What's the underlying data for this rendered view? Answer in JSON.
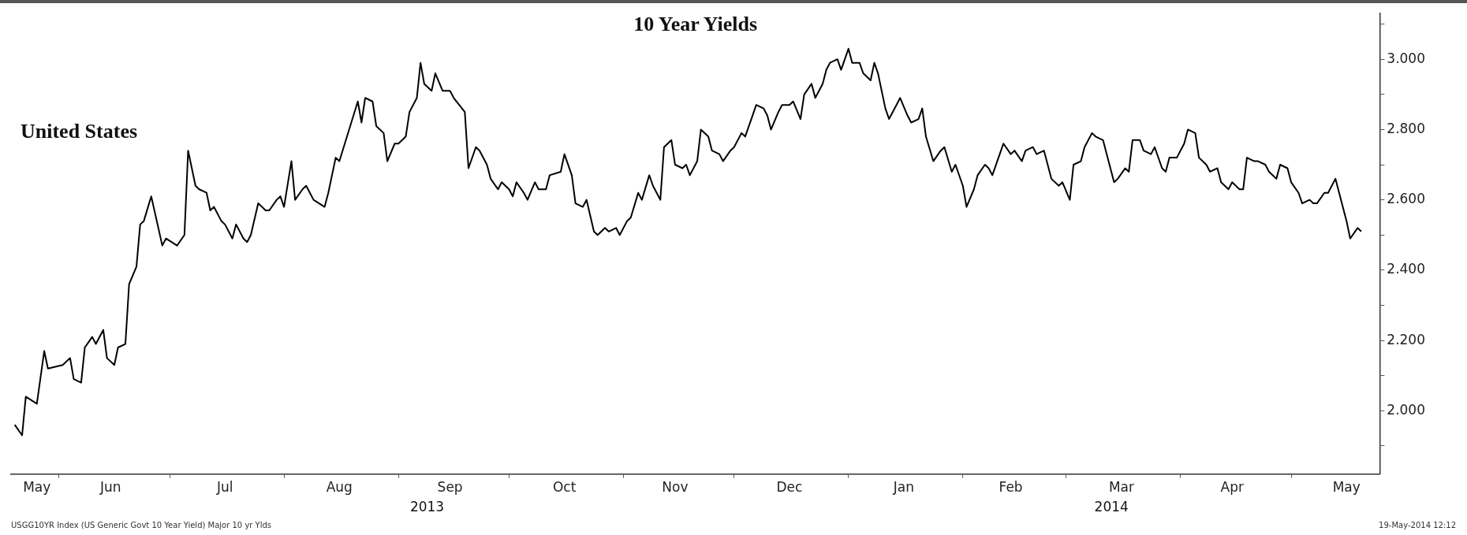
{
  "chart_data": {
    "type": "line",
    "title": "10 Year Yields",
    "subtitle": "United States",
    "xlim": [
      "2013-05-19",
      "2014-05-25"
    ],
    "ylim": [
      1.82,
      3.13
    ],
    "xticks": [
      {
        "value": "2013-05-26",
        "label": "May"
      },
      {
        "value": "2013-06-01",
        "label": null
      },
      {
        "value": "2013-06-15",
        "label": "Jun"
      },
      {
        "value": "2013-07-01",
        "label": null
      },
      {
        "value": "2013-07-16",
        "label": "Jul"
      },
      {
        "value": "2013-08-01",
        "label": null
      },
      {
        "value": "2013-08-16",
        "label": "Aug"
      },
      {
        "value": "2013-09-01",
        "label": null
      },
      {
        "value": "2013-09-15",
        "label": "Sep"
      },
      {
        "value": "2013-10-01",
        "label": null
      },
      {
        "value": "2013-10-16",
        "label": "Oct"
      },
      {
        "value": "2013-11-01",
        "label": null
      },
      {
        "value": "2013-11-15",
        "label": "Nov"
      },
      {
        "value": "2013-12-01",
        "label": null
      },
      {
        "value": "2013-12-16",
        "label": "Dec"
      },
      {
        "value": "2014-01-01",
        "label": null
      },
      {
        "value": "2014-01-16",
        "label": "Jan"
      },
      {
        "value": "2014-02-01",
        "label": null
      },
      {
        "value": "2014-02-14",
        "label": "Feb"
      },
      {
        "value": "2014-03-01",
        "label": null
      },
      {
        "value": "2014-03-16",
        "label": "Mar"
      },
      {
        "value": "2014-04-01",
        "label": null
      },
      {
        "value": "2014-04-15",
        "label": "Apr"
      },
      {
        "value": "2014-05-01",
        "label": null
      },
      {
        "value": "2014-05-16",
        "label": "May"
      }
    ],
    "yticks": [
      {
        "value": 1.9,
        "label": null
      },
      {
        "value": 2,
        "label": "2.000"
      },
      {
        "value": 2.1,
        "label": null
      },
      {
        "value": 2.2,
        "label": "2.200"
      },
      {
        "value": 2.3,
        "label": null
      },
      {
        "value": 2.4,
        "label": "2.400"
      },
      {
        "value": 2.5,
        "label": null
      },
      {
        "value": 2.6,
        "label": "2.600"
      },
      {
        "value": 2.7,
        "label": null
      },
      {
        "value": 2.8,
        "label": "2.800"
      },
      {
        "value": 2.9,
        "label": null
      },
      {
        "value": 3,
        "label": "3.000"
      },
      {
        "value": 3.1,
        "label": null
      }
    ],
    "annotations": [
      "2013",
      "2014",
      "USGG10YR Index (US Generic Govt 10 Year Yield) Major 10 yr Ylds",
      "19-May-2014 12:12"
    ],
    "x": [
      "2013-05-20",
      "2013-05-22",
      "2013-05-23",
      "2013-05-26",
      "2013-05-28",
      "2013-05-29",
      "2013-06-02",
      "2013-06-04",
      "2013-06-05",
      "2013-06-07",
      "2013-06-08",
      "2013-06-10",
      "2013-06-11",
      "2013-06-13",
      "2013-06-14",
      "2013-06-16",
      "2013-06-17",
      "2013-06-19",
      "2013-06-20",
      "2013-06-22",
      "2013-06-23",
      "2013-06-24",
      "2013-06-26",
      "2013-06-29",
      "2013-06-30",
      "2013-07-03",
      "2013-07-05",
      "2013-07-06",
      "2013-07-08",
      "2013-07-09",
      "2013-07-11",
      "2013-07-12",
      "2013-07-13",
      "2013-07-15",
      "2013-07-16",
      "2013-07-18",
      "2013-07-19",
      "2013-07-21",
      "2013-07-22",
      "2013-07-23",
      "2013-07-25",
      "2013-07-27",
      "2013-07-28",
      "2013-07-30",
      "2013-07-31",
      "2013-08-01",
      "2013-08-03",
      "2013-08-04",
      "2013-08-06",
      "2013-08-07",
      "2013-08-09",
      "2013-08-12",
      "2013-08-13",
      "2013-08-15",
      "2013-08-16",
      "2013-08-21",
      "2013-08-22",
      "2013-08-23",
      "2013-08-25",
      "2013-08-26",
      "2013-08-28",
      "2013-08-29",
      "2013-08-31",
      "2013-09-01",
      "2013-09-03",
      "2013-09-04",
      "2013-09-06",
      "2013-09-07",
      "2013-09-08",
      "2013-09-10",
      "2013-09-11",
      "2013-09-13",
      "2013-09-15",
      "2013-09-16",
      "2013-09-19",
      "2013-09-20",
      "2013-09-22",
      "2013-09-23",
      "2013-09-25",
      "2013-09-26",
      "2013-09-28",
      "2013-09-29",
      "2013-10-01",
      "2013-10-02",
      "2013-10-03",
      "2013-10-05",
      "2013-10-06",
      "2013-10-08",
      "2013-10-09",
      "2013-10-11",
      "2013-10-12",
      "2013-10-15",
      "2013-10-16",
      "2013-10-18",
      "2013-10-19",
      "2013-10-21",
      "2013-10-22",
      "2013-10-24",
      "2013-10-25",
      "2013-10-27",
      "2013-10-28",
      "2013-10-30",
      "2013-10-31",
      "2013-11-02",
      "2013-11-03",
      "2013-11-05",
      "2013-11-06",
      "2013-11-08",
      "2013-11-09",
      "2013-11-11",
      "2013-11-12",
      "2013-11-14",
      "2013-11-15",
      "2013-11-17",
      "2013-11-18",
      "2013-11-19",
      "2013-11-21",
      "2013-11-22",
      "2013-11-24",
      "2013-11-25",
      "2013-11-27",
      "2013-11-28",
      "2013-11-30",
      "2013-12-01",
      "2013-12-03",
      "2013-12-04",
      "2013-12-06",
      "2013-12-07",
      "2013-12-09",
      "2013-12-10",
      "2013-12-11",
      "2013-12-13",
      "2013-12-14",
      "2013-12-16",
      "2013-12-17",
      "2013-12-19",
      "2013-12-20",
      "2013-12-22",
      "2013-12-23",
      "2013-12-25",
      "2013-12-26",
      "2013-12-27",
      "2013-12-29",
      "2013-12-30",
      "2014-01-01",
      "2014-01-02",
      "2014-01-04",
      "2014-01-05",
      "2014-01-07",
      "2014-01-08",
      "2014-01-09",
      "2014-01-11",
      "2014-01-12",
      "2014-01-14",
      "2014-01-15",
      "2014-01-17",
      "2014-01-18",
      "2014-01-20",
      "2014-01-21",
      "2014-01-22",
      "2014-01-24",
      "2014-01-26",
      "2014-01-27",
      "2014-01-29",
      "2014-01-30",
      "2014-02-01",
      "2014-02-02",
      "2014-02-04",
      "2014-02-05",
      "2014-02-07",
      "2014-02-08",
      "2014-02-09",
      "2014-02-11",
      "2014-02-12",
      "2014-02-14",
      "2014-02-15",
      "2014-02-17",
      "2014-02-18",
      "2014-02-20",
      "2014-02-21",
      "2014-02-23",
      "2014-02-24",
      "2014-02-25",
      "2014-02-27",
      "2014-02-28",
      "2014-03-02",
      "2014-03-03",
      "2014-03-05",
      "2014-03-06",
      "2014-03-08",
      "2014-03-09",
      "2014-03-11",
      "2014-03-12",
      "2014-03-14",
      "2014-03-15",
      "2014-03-17",
      "2014-03-18",
      "2014-03-19",
      "2014-03-21",
      "2014-03-22",
      "2014-03-24",
      "2014-03-25",
      "2014-03-27",
      "2014-03-28",
      "2014-03-29",
      "2014-03-31",
      "2014-04-02",
      "2014-04-03",
      "2014-04-05",
      "2014-04-06",
      "2014-04-08",
      "2014-04-09",
      "2014-04-11",
      "2014-04-12",
      "2014-04-14",
      "2014-04-15",
      "2014-04-17",
      "2014-04-18",
      "2014-04-19",
      "2014-04-21",
      "2014-04-22",
      "2014-04-24",
      "2014-04-25",
      "2014-04-27",
      "2014-04-28",
      "2014-04-30",
      "2014-05-01",
      "2014-05-03",
      "2014-05-04",
      "2014-05-06",
      "2014-05-07",
      "2014-05-08",
      "2014-05-10",
      "2014-05-11",
      "2014-05-13",
      "2014-05-14",
      "2014-05-16",
      "2014-05-17",
      "2014-05-19",
      "2014-05-20"
    ],
    "series": [
      {
        "color": "#000000",
        "values": [
          1.96,
          1.93,
          2.04,
          2.02,
          2.17,
          2.12,
          2.13,
          2.15,
          2.09,
          2.08,
          2.18,
          2.21,
          2.19,
          2.23,
          2.15,
          2.13,
          2.18,
          2.19,
          2.36,
          2.41,
          2.53,
          2.54,
          2.61,
          2.47,
          2.49,
          2.47,
          2.5,
          2.74,
          2.64,
          2.63,
          2.62,
          2.57,
          2.58,
          2.54,
          2.53,
          2.49,
          2.53,
          2.49,
          2.48,
          2.5,
          2.59,
          2.57,
          2.57,
          2.6,
          2.61,
          2.58,
          2.71,
          2.6,
          2.63,
          2.64,
          2.6,
          2.58,
          2.62,
          2.72,
          2.71,
          2.88,
          2.82,
          2.89,
          2.88,
          2.81,
          2.79,
          2.71,
          2.76,
          2.76,
          2.78,
          2.85,
          2.89,
          2.99,
          2.93,
          2.91,
          2.96,
          2.91,
          2.91,
          2.89,
          2.85,
          2.69,
          2.75,
          2.74,
          2.7,
          2.66,
          2.63,
          2.65,
          2.63,
          2.61,
          2.65,
          2.62,
          2.6,
          2.65,
          2.63,
          2.63,
          2.67,
          2.68,
          2.73,
          2.67,
          2.59,
          2.58,
          2.6,
          2.51,
          2.5,
          2.52,
          2.51,
          2.52,
          2.5,
          2.54,
          2.55,
          2.62,
          2.6,
          2.67,
          2.64,
          2.6,
          2.75,
          2.77,
          2.7,
          2.69,
          2.7,
          2.67,
          2.71,
          2.8,
          2.78,
          2.74,
          2.73,
          2.71,
          2.74,
          2.75,
          2.79,
          2.78,
          2.84,
          2.87,
          2.86,
          2.84,
          2.8,
          2.85,
          2.87,
          2.87,
          2.88,
          2.83,
          2.9,
          2.93,
          2.89,
          2.93,
          2.97,
          2.99,
          3.0,
          2.97,
          3.03,
          2.99,
          2.99,
          2.96,
          2.94,
          2.99,
          2.96,
          2.86,
          2.83,
          2.87,
          2.89,
          2.84,
          2.82,
          2.83,
          2.86,
          2.78,
          2.71,
          2.74,
          2.75,
          2.68,
          2.7,
          2.64,
          2.58,
          2.63,
          2.67,
          2.7,
          2.69,
          2.67,
          2.73,
          2.76,
          2.73,
          2.74,
          2.71,
          2.74,
          2.75,
          2.73,
          2.74,
          2.7,
          2.66,
          2.64,
          2.65,
          2.6,
          2.7,
          2.71,
          2.75,
          2.79,
          2.78,
          2.77,
          2.73,
          2.65,
          2.66,
          2.69,
          2.68,
          2.77,
          2.77,
          2.74,
          2.73,
          2.75,
          2.69,
          2.68,
          2.72,
          2.72,
          2.76,
          2.8,
          2.79,
          2.72,
          2.7,
          2.68,
          2.69,
          2.65,
          2.63,
          2.65,
          2.63,
          2.63,
          2.72,
          2.71,
          2.71,
          2.7,
          2.68,
          2.66,
          2.7,
          2.69,
          2.65,
          2.62,
          2.59,
          2.6,
          2.59,
          2.59,
          2.62,
          2.62,
          2.66,
          2.62,
          2.54,
          2.49,
          2.52,
          2.51
        ]
      }
    ]
  }
}
